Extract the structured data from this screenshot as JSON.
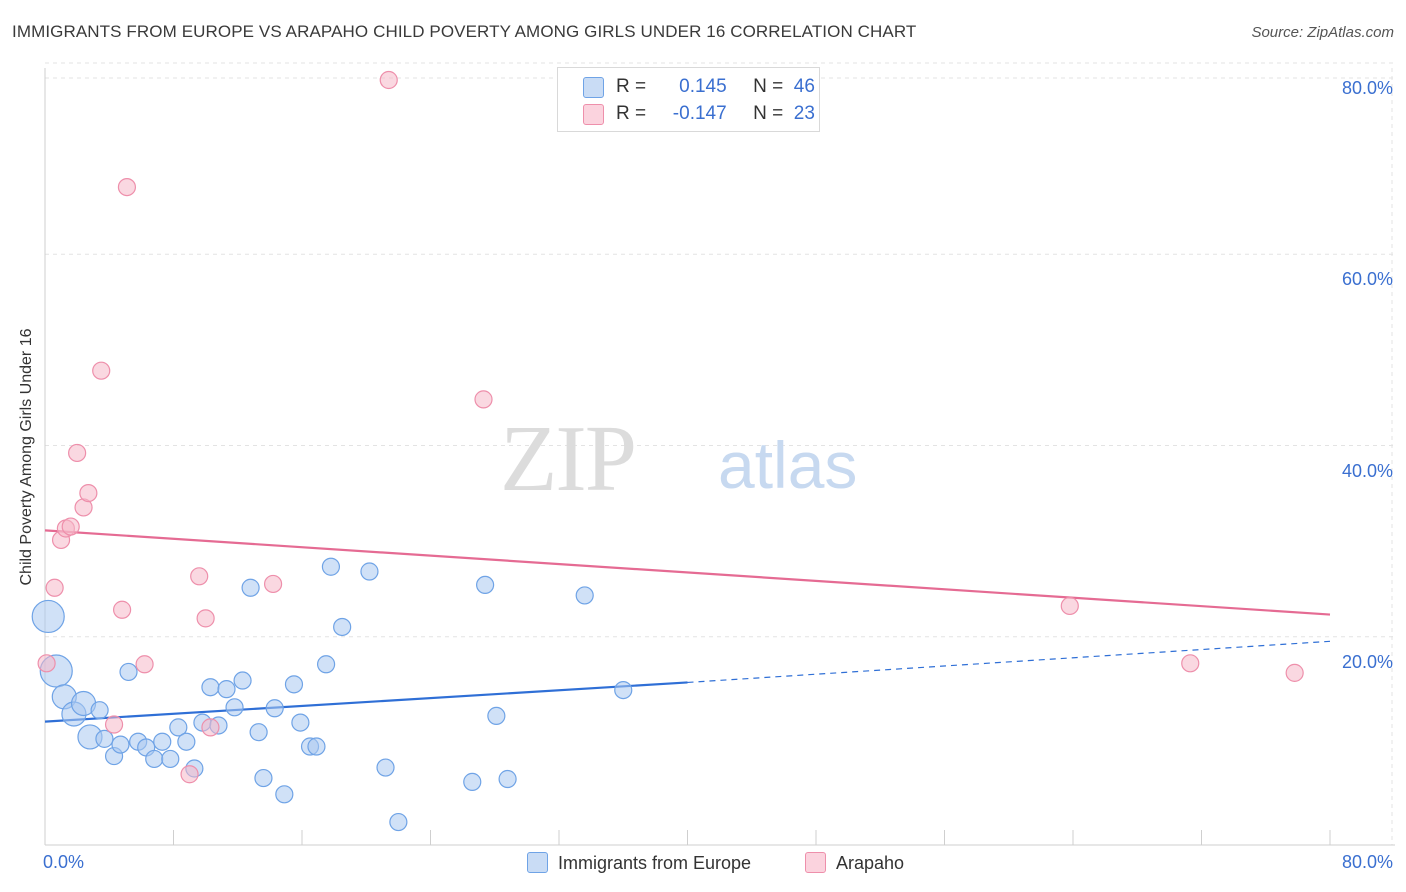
{
  "title": "IMMIGRANTS FROM EUROPE VS ARAPAHO CHILD POVERTY AMONG GIRLS UNDER 16 CORRELATION CHART",
  "source": "Source: ZipAtlas.com",
  "watermark": {
    "zip": "ZIP",
    "atlas": "atlas"
  },
  "legend_stats": [
    {
      "r_label": "R =",
      "r_value": "0.145",
      "n_label": "N =",
      "n_value": "46",
      "color": "#a9c8f0"
    },
    {
      "r_label": "R =",
      "r_value": "-0.147",
      "n_label": "N =",
      "n_value": "23",
      "color": "#f5b8c9"
    }
  ],
  "chart_data": {
    "type": "scatter",
    "title": "IMMIGRANTS FROM EUROPE VS ARAPAHO CHILD POVERTY AMONG GIRLS UNDER 16 CORRELATION CHART",
    "xlabel": "",
    "ylabel": "Child Poverty Among Girls Under 16",
    "xlim": [
      0,
      80
    ],
    "ylim": [
      0,
      80
    ],
    "x_tick_labels": [
      "0.0%",
      "80.0%"
    ],
    "y_tick_labels": [
      "20.0%",
      "40.0%",
      "60.0%",
      "80.0%"
    ],
    "y_ticks": [
      20,
      40,
      60,
      80
    ],
    "grid": true,
    "legend": [
      "Immigrants from Europe",
      "Arapaho"
    ],
    "series": [
      {
        "name": "Immigrants from Europe",
        "color": "#6fa3e6",
        "fill": "#a9c8f0",
        "trend": {
          "x0": 0,
          "y0": 12.9,
          "x1": 40,
          "y1": 17.0,
          "dash_to_x": 80,
          "dash_to_y": 21.3,
          "color": "#2f6fd6"
        },
        "points": [
          [
            0.2,
            23.9,
            3
          ],
          [
            0.7,
            18.2,
            3
          ],
          [
            1.2,
            15.5,
            2
          ],
          [
            1.8,
            13.7,
            2
          ],
          [
            2.4,
            14.8,
            2
          ],
          [
            2.8,
            11.3,
            2
          ],
          [
            3.4,
            14.1,
            1
          ],
          [
            3.7,
            11.1,
            1
          ],
          [
            4.3,
            9.3,
            1
          ],
          [
            4.7,
            10.5,
            1
          ],
          [
            5.2,
            18.1,
            1
          ],
          [
            5.8,
            10.8,
            1
          ],
          [
            6.3,
            10.2,
            1
          ],
          [
            6.8,
            9.0,
            1
          ],
          [
            7.3,
            10.8,
            1
          ],
          [
            7.8,
            9.0,
            1
          ],
          [
            8.3,
            12.3,
            1
          ],
          [
            8.8,
            10.8,
            1
          ],
          [
            9.3,
            8.0,
            1
          ],
          [
            9.8,
            12.8,
            1
          ],
          [
            10.3,
            16.5,
            1
          ],
          [
            10.8,
            12.5,
            1
          ],
          [
            11.3,
            16.3,
            1
          ],
          [
            11.8,
            14.4,
            1
          ],
          [
            12.3,
            17.2,
            1
          ],
          [
            12.8,
            26.9,
            1
          ],
          [
            13.3,
            11.8,
            1
          ],
          [
            13.6,
            7.0,
            1
          ],
          [
            14.3,
            14.3,
            1
          ],
          [
            14.9,
            5.3,
            1
          ],
          [
            15.5,
            16.8,
            1
          ],
          [
            15.9,
            12.8,
            1
          ],
          [
            16.5,
            10.3,
            1
          ],
          [
            16.9,
            10.3,
            1
          ],
          [
            17.5,
            18.9,
            1
          ],
          [
            17.8,
            29.1,
            1
          ],
          [
            18.5,
            22.8,
            1
          ],
          [
            20.2,
            28.6,
            1
          ],
          [
            21.2,
            8.1,
            1
          ],
          [
            22.0,
            2.4,
            1
          ],
          [
            26.6,
            6.6,
            1
          ],
          [
            27.4,
            27.2,
            1
          ],
          [
            28.1,
            13.5,
            1
          ],
          [
            28.8,
            6.9,
            1
          ],
          [
            33.6,
            26.1,
            1
          ],
          [
            36.0,
            16.2,
            1
          ]
        ]
      },
      {
        "name": "Arapaho",
        "color": "#ee8fab",
        "fill": "#f5b8c9",
        "trend": {
          "x0": 0,
          "y0": 32.9,
          "x1": 80,
          "y1": 24.1,
          "color": "#e56b93"
        },
        "points": [
          [
            0.1,
            19.0,
            1
          ],
          [
            0.6,
            26.9,
            1
          ],
          [
            1.0,
            31.9,
            1
          ],
          [
            1.3,
            33.1,
            1
          ],
          [
            1.6,
            33.3,
            1
          ],
          [
            2.0,
            41.0,
            1
          ],
          [
            2.4,
            35.3,
            1
          ],
          [
            2.7,
            36.8,
            1
          ],
          [
            3.5,
            49.6,
            1
          ],
          [
            4.3,
            12.6,
            1
          ],
          [
            4.8,
            24.6,
            1
          ],
          [
            5.1,
            68.8,
            1
          ],
          [
            6.2,
            18.9,
            1
          ],
          [
            9.0,
            7.4,
            1
          ],
          [
            9.6,
            28.1,
            1
          ],
          [
            10.0,
            23.7,
            1
          ],
          [
            10.3,
            12.3,
            1
          ],
          [
            14.2,
            27.3,
            1
          ],
          [
            21.4,
            80.0,
            1
          ],
          [
            27.3,
            46.6,
            1
          ],
          [
            63.8,
            25.0,
            1
          ],
          [
            71.3,
            19.0,
            1
          ],
          [
            77.8,
            18.0,
            1
          ]
        ]
      }
    ]
  }
}
